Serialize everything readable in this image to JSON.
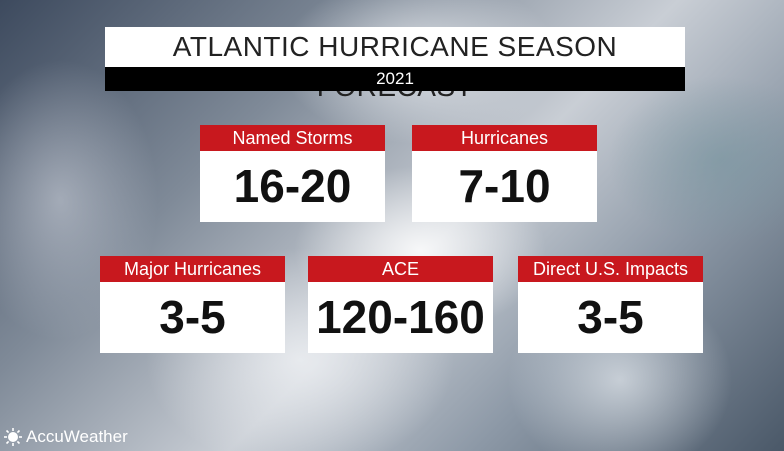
{
  "header": {
    "title": "ATLANTIC HURRICANE SEASON FORECAST",
    "year": "2021"
  },
  "cards": [
    {
      "label": "Named Storms",
      "value": "16-20"
    },
    {
      "label": "Hurricanes",
      "value": "7-10"
    },
    {
      "label": "Major Hurricanes",
      "value": "3-5"
    },
    {
      "label": "ACE",
      "value": "120-160"
    },
    {
      "label": "Direct U.S. Impacts",
      "value": "3-5"
    }
  ],
  "brand": "AccuWeather"
}
